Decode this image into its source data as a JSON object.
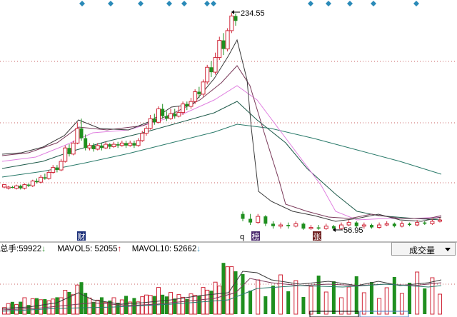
{
  "price_chart": {
    "high_label": "234.55",
    "low_label": "56.95",
    "event_markers": [
      {
        "label": "财",
        "bg": "#1a2e78"
      },
      {
        "label": "q",
        "bg": "#ffffff"
      },
      {
        "label": "榜",
        "bg": "#4b2a6e"
      },
      {
        "label": "张",
        "bg": "#6e1e1e"
      }
    ]
  },
  "volume_header": {
    "total_label": "总手:",
    "total_value": "59922",
    "total_arrow": "↓",
    "ma5_label": "MAVOL5:",
    "ma5_value": "52055",
    "ma5_arrow": "↑",
    "ma10_label": "MAVOL10:",
    "ma10_value": "52662",
    "ma10_arrow": "↓",
    "indicator_select": "成交量"
  },
  "colors": {
    "up": "#d0283a",
    "down": "#1f8f1f",
    "ma5": "#2a2a2a",
    "ma10": "#7a3a5a",
    "ma20": "#e080e0",
    "ma60": "#2a7a6a",
    "ma120": "#1e5a4a",
    "grid": "#b03030",
    "marker": "#2a8ab8"
  },
  "chart_data": {
    "type": "candlestick",
    "price_high": 234.55,
    "price_low": 56.95,
    "candles": [
      [
        92,
        94,
        93,
        91,
        "u"
      ],
      [
        91,
        92,
        93,
        90,
        "u"
      ],
      [
        92,
        92,
        93,
        91,
        "d"
      ],
      [
        91,
        93,
        94,
        90,
        "u"
      ],
      [
        93,
        91,
        94,
        90,
        "d"
      ],
      [
        91,
        94,
        95,
        90,
        "u"
      ],
      [
        94,
        93,
        95,
        92,
        "d"
      ],
      [
        93,
        97,
        98,
        92,
        "u"
      ],
      [
        97,
        96,
        99,
        95,
        "d"
      ],
      [
        96,
        100,
        102,
        95,
        "u"
      ],
      [
        100,
        99,
        103,
        98,
        "d"
      ],
      [
        99,
        104,
        106,
        98,
        "u"
      ],
      [
        104,
        108,
        110,
        103,
        "u"
      ],
      [
        108,
        106,
        110,
        104,
        "d"
      ],
      [
        106,
        113,
        115,
        105,
        "u"
      ],
      [
        113,
        124,
        126,
        112,
        "u"
      ],
      [
        124,
        119,
        127,
        117,
        "d"
      ],
      [
        119,
        128,
        130,
        118,
        "u"
      ],
      [
        128,
        140,
        145,
        127,
        "u"
      ],
      [
        140,
        132,
        148,
        130,
        "d"
      ],
      [
        132,
        124,
        135,
        122,
        "d"
      ],
      [
        124,
        126,
        128,
        122,
        "u"
      ],
      [
        126,
        123,
        128,
        121,
        "d"
      ],
      [
        123,
        126,
        128,
        122,
        "u"
      ],
      [
        126,
        124,
        128,
        122,
        "d"
      ],
      [
        124,
        127,
        129,
        123,
        "u"
      ],
      [
        127,
        125,
        128,
        123,
        "d"
      ],
      [
        125,
        127,
        129,
        124,
        "u"
      ],
      [
        127,
        126,
        129,
        124,
        "d"
      ],
      [
        126,
        128,
        130,
        125,
        "u"
      ],
      [
        128,
        126,
        130,
        124,
        "d"
      ],
      [
        126,
        128,
        130,
        125,
        "u"
      ],
      [
        128,
        126,
        130,
        124,
        "d"
      ],
      [
        126,
        130,
        132,
        125,
        "u"
      ],
      [
        130,
        136,
        138,
        129,
        "u"
      ],
      [
        136,
        140,
        142,
        134,
        "u"
      ],
      [
        140,
        148,
        151,
        139,
        "u"
      ],
      [
        148,
        145,
        152,
        143,
        "d"
      ],
      [
        145,
        156,
        158,
        144,
        "u"
      ],
      [
        156,
        150,
        160,
        148,
        "d"
      ],
      [
        150,
        148,
        154,
        146,
        "d"
      ],
      [
        148,
        152,
        156,
        147,
        "u"
      ],
      [
        152,
        150,
        156,
        148,
        "d"
      ],
      [
        150,
        153,
        158,
        149,
        "u"
      ],
      [
        153,
        160,
        162,
        151,
        "u"
      ],
      [
        160,
        158,
        162,
        155,
        "d"
      ],
      [
        158,
        162,
        165,
        156,
        "u"
      ],
      [
        162,
        170,
        172,
        160,
        "u"
      ],
      [
        170,
        168,
        174,
        165,
        "d"
      ],
      [
        168,
        178,
        180,
        166,
        "u"
      ],
      [
        178,
        190,
        192,
        176,
        "u"
      ],
      [
        190,
        186,
        195,
        182,
        "d"
      ],
      [
        186,
        198,
        202,
        184,
        "u"
      ],
      [
        198,
        212,
        215,
        196,
        "u"
      ],
      [
        212,
        205,
        218,
        200,
        "d"
      ],
      [
        205,
        220,
        222,
        203,
        "u"
      ],
      [
        220,
        232,
        234.55,
        218,
        "u"
      ],
      [
        232,
        228,
        234,
        224,
        "d"
      ],
      [
        70,
        66,
        72,
        64,
        "d"
      ],
      [
        66,
        63,
        70,
        61,
        "d"
      ],
      [
        63,
        68,
        70,
        62,
        "u"
      ],
      [
        68,
        62,
        69,
        60,
        "d"
      ],
      [
        62,
        60,
        64,
        58,
        "d"
      ],
      [
        60,
        61,
        63,
        58,
        "u"
      ],
      [
        61,
        60,
        63,
        58,
        "d"
      ],
      [
        60,
        62,
        64,
        59,
        "u"
      ],
      [
        62,
        58,
        63,
        57,
        "d"
      ],
      [
        58,
        59,
        61,
        56.95,
        "u"
      ],
      [
        59,
        58,
        61,
        57,
        "d"
      ],
      [
        58,
        60,
        62,
        57,
        "u"
      ],
      [
        60,
        58,
        61,
        57,
        "d"
      ],
      [
        58,
        61,
        63,
        57,
        "u"
      ],
      [
        61,
        63,
        65,
        60,
        "u"
      ],
      [
        63,
        60,
        64,
        59,
        "d"
      ],
      [
        60,
        61,
        63,
        58,
        "u"
      ],
      [
        61,
        59,
        62,
        58,
        "d"
      ],
      [
        59,
        61,
        63,
        58,
        "u"
      ],
      [
        61,
        62,
        64,
        60,
        "u"
      ],
      [
        62,
        60,
        63,
        59,
        "d"
      ],
      [
        60,
        62,
        64,
        59,
        "u"
      ],
      [
        62,
        61,
        63,
        60,
        "d"
      ],
      [
        61,
        63,
        65,
        60,
        "u"
      ],
      [
        63,
        62,
        64,
        61,
        "d"
      ],
      [
        62,
        64,
        66,
        61,
        "u"
      ],
      [
        64,
        65,
        67,
        63,
        "u"
      ]
    ]
  }
}
